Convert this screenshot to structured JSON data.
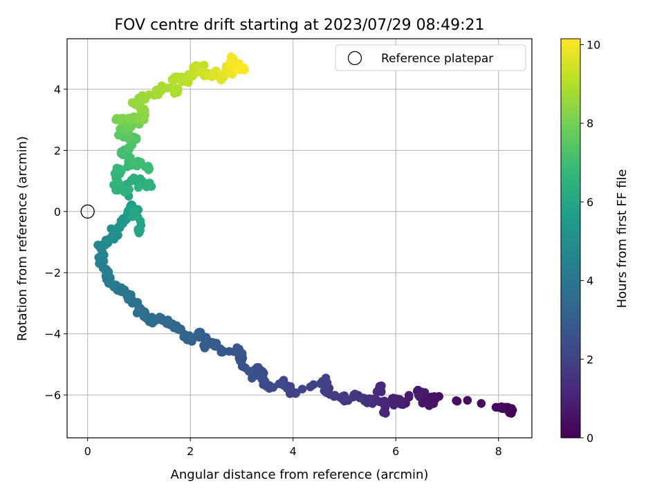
{
  "chart_data": {
    "type": "scatter",
    "title": "FOV centre drift starting at 2023/07/29 08:49:21",
    "xlabel": "Angular distance from reference (arcmin)",
    "ylabel": "Rotation from reference (arcmin)",
    "xlim": [
      -0.4,
      8.65
    ],
    "ylim": [
      -7.4,
      5.65
    ],
    "xticks": [
      0,
      2,
      4,
      6,
      8
    ],
    "yticks": [
      -6,
      -4,
      -2,
      0,
      2,
      4
    ],
    "grid": true,
    "legend": {
      "placement": "top-right",
      "entries": [
        "Reference platepar"
      ]
    },
    "reference_point": {
      "x": 0,
      "y": 0,
      "label": "Reference platepar"
    },
    "colorbar": {
      "label": "Hours from first FF file",
      "range": [
        0,
        10.15
      ],
      "ticks": [
        0,
        2,
        4,
        6,
        8,
        10
      ],
      "colormap": "viridis"
    },
    "colormap_stops": [
      "#440154",
      "#482878",
      "#3e4a89",
      "#31688e",
      "#26828e",
      "#1f9e89",
      "#35b779",
      "#6ece58",
      "#b5de2b",
      "#fde725"
    ],
    "anchor_points": [
      [
        8.25,
        -6.6,
        0.0
      ],
      [
        8.18,
        -6.4,
        0.1
      ],
      [
        7.95,
        -6.4,
        0.25
      ],
      [
        6.75,
        -6.05,
        0.45
      ],
      [
        6.65,
        -6.35,
        0.55
      ],
      [
        6.5,
        -6.1,
        0.65
      ],
      [
        6.5,
        -5.9,
        0.75
      ],
      [
        6.1,
        -6.3,
        0.85
      ],
      [
        5.95,
        -6.1,
        0.95
      ],
      [
        5.8,
        -6.6,
        1.05
      ],
      [
        5.72,
        -5.7,
        1.15
      ],
      [
        5.55,
        -6.2,
        1.3
      ],
      [
        5.4,
        -6.15,
        1.45
      ],
      [
        5.2,
        -6.0,
        1.55
      ],
      [
        5.0,
        -6.2,
        1.7
      ],
      [
        4.8,
        -6.05,
        1.8
      ],
      [
        4.65,
        -5.8,
        1.9
      ],
      [
        4.6,
        -5.55,
        1.95
      ],
      [
        4.05,
        -5.95,
        2.05
      ],
      [
        3.8,
        -5.55,
        2.15
      ],
      [
        3.55,
        -5.75,
        2.25
      ],
      [
        3.4,
        -5.5,
        2.35
      ],
      [
        3.3,
        -5.1,
        2.45
      ],
      [
        3.2,
        -5.45,
        2.5
      ],
      [
        2.95,
        -4.8,
        2.6
      ],
      [
        2.95,
        -4.5,
        2.7
      ],
      [
        2.6,
        -4.6,
        2.8
      ],
      [
        2.5,
        -4.35,
        2.9
      ],
      [
        2.3,
        -4.4,
        3.0
      ],
      [
        2.2,
        -3.95,
        3.1
      ],
      [
        2.0,
        -4.2,
        3.2
      ],
      [
        1.8,
        -3.85,
        3.3
      ],
      [
        1.6,
        -3.7,
        3.4
      ],
      [
        1.4,
        -3.45,
        3.5
      ],
      [
        1.2,
        -3.6,
        3.6
      ],
      [
        1.05,
        -3.3,
        3.7
      ],
      [
        0.95,
        -3.0,
        3.8
      ],
      [
        0.8,
        -2.7,
        3.9
      ],
      [
        0.65,
        -2.6,
        4.0
      ],
      [
        0.55,
        -2.4,
        4.1
      ],
      [
        0.4,
        -2.2,
        4.2
      ],
      [
        0.3,
        -1.85,
        4.35
      ],
      [
        0.28,
        -1.5,
        4.5
      ],
      [
        0.25,
        -1.2,
        4.65
      ],
      [
        0.35,
        -1.0,
        4.8
      ],
      [
        0.5,
        -0.8,
        5.0
      ],
      [
        0.6,
        -0.5,
        5.2
      ],
      [
        0.7,
        -0.3,
        5.4
      ],
      [
        0.8,
        -0.1,
        5.55
      ],
      [
        0.85,
        0.2,
        5.7
      ],
      [
        0.95,
        0.0,
        5.85
      ],
      [
        1.0,
        -0.7,
        5.95
      ],
      [
        0.8,
        0.5,
        6.05
      ],
      [
        0.75,
        0.8,
        6.2
      ],
      [
        0.9,
        1.1,
        6.35
      ],
      [
        1.2,
        0.85,
        6.45
      ],
      [
        0.55,
        0.7,
        6.55
      ],
      [
        0.55,
        1.1,
        6.65
      ],
      [
        0.6,
        1.4,
        6.75
      ],
      [
        0.85,
        1.6,
        6.85
      ],
      [
        1.2,
        1.4,
        6.95
      ],
      [
        0.65,
        1.9,
        7.05
      ],
      [
        0.8,
        2.1,
        7.2
      ],
      [
        0.95,
        2.4,
        7.4
      ],
      [
        0.6,
        2.5,
        7.55
      ],
      [
        0.75,
        2.75,
        7.75
      ],
      [
        0.95,
        2.9,
        7.9
      ],
      [
        0.55,
        3.0,
        8.05
      ],
      [
        0.9,
        3.1,
        8.2
      ],
      [
        1.1,
        3.0,
        8.3
      ],
      [
        1.1,
        3.35,
        8.4
      ],
      [
        0.9,
        3.55,
        8.5
      ],
      [
        1.05,
        3.75,
        8.6
      ],
      [
        1.3,
        3.8,
        8.7
      ],
      [
        1.45,
        4.05,
        8.8
      ],
      [
        1.75,
        3.9,
        8.9
      ],
      [
        1.7,
        4.4,
        9.0
      ],
      [
        1.9,
        4.25,
        9.1
      ],
      [
        2.05,
        4.5,
        9.2
      ],
      [
        2.2,
        4.75,
        9.3
      ],
      [
        2.3,
        4.45,
        9.45
      ],
      [
        2.5,
        4.6,
        9.6
      ],
      [
        2.6,
        4.3,
        9.7
      ],
      [
        2.75,
        4.75,
        9.8
      ],
      [
        2.75,
        4.55,
        9.9
      ],
      [
        2.8,
        5.05,
        10.0
      ],
      [
        3.0,
        4.65,
        10.1
      ]
    ],
    "jitter": {
      "x": 0.13,
      "y": 0.15,
      "samples_per_anchor": 6,
      "seed": 12345
    }
  }
}
